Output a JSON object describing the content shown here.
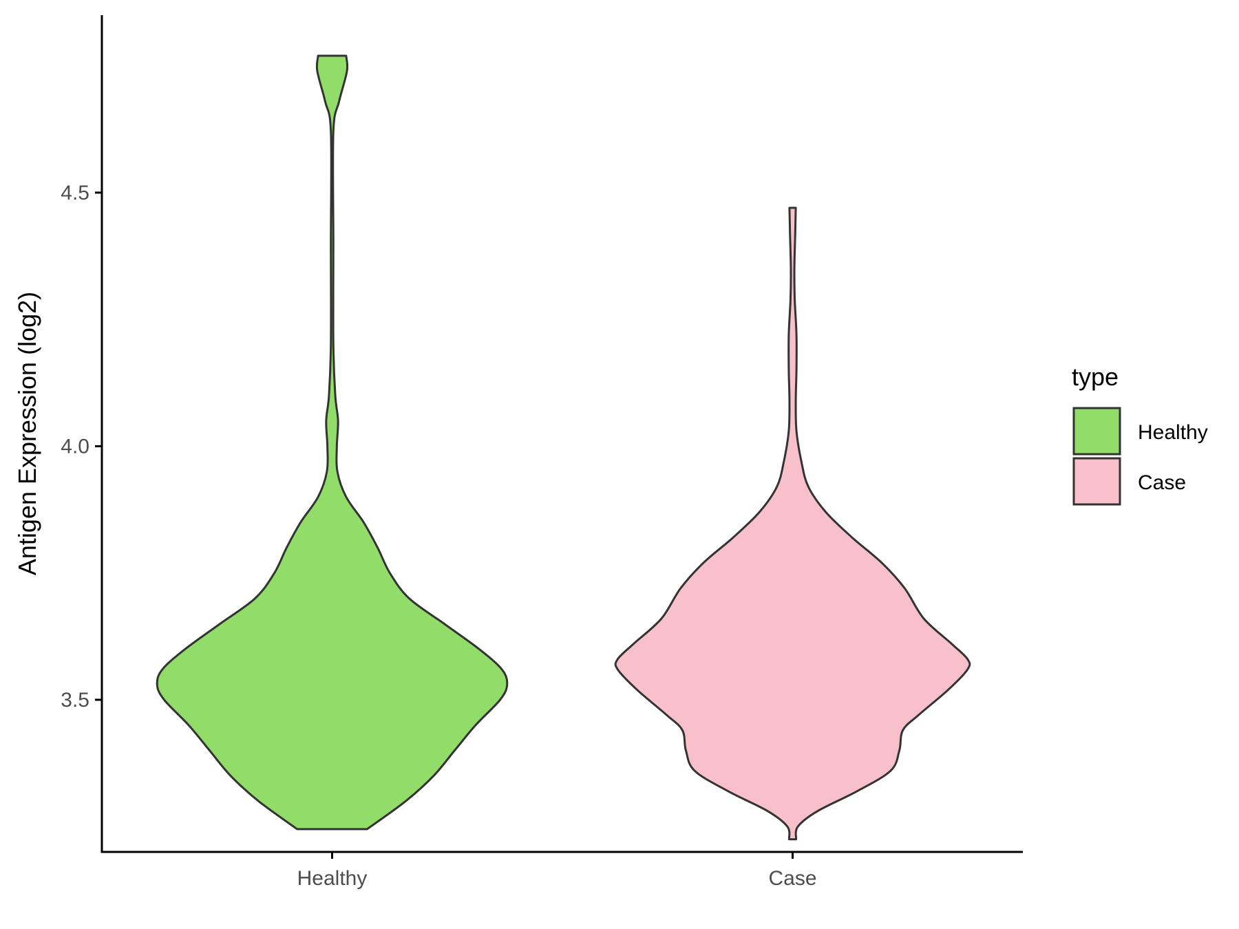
{
  "chart_data": {
    "type": "violin",
    "title": "",
    "xlabel": "",
    "ylabel": "Antigen Expression (log2)",
    "categories": [
      "Healthy",
      "Case"
    ],
    "ylim": [
      3.2,
      4.85
    ],
    "yticks": [
      3.5,
      4.0,
      4.5
    ],
    "ytick_labels": [
      "3.5",
      "4.0",
      "4.5"
    ],
    "legend": {
      "title": "type",
      "position": "right",
      "entries": [
        "Healthy",
        "Case"
      ]
    },
    "colors": {
      "Healthy": "#92dc6a",
      "Case": "#f8c0cb",
      "outline": "#333333",
      "axis": "#000000"
    },
    "series": [
      {
        "category": "Healthy",
        "min": 3.245,
        "max": 4.77,
        "density_profile": [
          {
            "y": 3.245,
            "w": 0.2
          },
          {
            "y": 3.3,
            "w": 0.42
          },
          {
            "y": 3.35,
            "w": 0.58
          },
          {
            "y": 3.4,
            "w": 0.7
          },
          {
            "y": 3.45,
            "w": 0.82
          },
          {
            "y": 3.5,
            "w": 0.96
          },
          {
            "y": 3.53,
            "w": 1.0
          },
          {
            "y": 3.56,
            "w": 0.97
          },
          {
            "y": 3.6,
            "w": 0.84
          },
          {
            "y": 3.65,
            "w": 0.64
          },
          {
            "y": 3.7,
            "w": 0.44
          },
          {
            "y": 3.75,
            "w": 0.33
          },
          {
            "y": 3.8,
            "w": 0.26
          },
          {
            "y": 3.85,
            "w": 0.18
          },
          {
            "y": 3.9,
            "w": 0.08
          },
          {
            "y": 3.95,
            "w": 0.03
          },
          {
            "y": 4.0,
            "w": 0.027
          },
          {
            "y": 4.05,
            "w": 0.034
          },
          {
            "y": 4.1,
            "w": 0.018
          },
          {
            "y": 4.2,
            "w": 0.007
          },
          {
            "y": 4.4,
            "w": 0.007
          },
          {
            "y": 4.62,
            "w": 0.007
          },
          {
            "y": 4.68,
            "w": 0.04
          },
          {
            "y": 4.74,
            "w": 0.085
          },
          {
            "y": 4.77,
            "w": 0.08
          }
        ]
      },
      {
        "category": "Case",
        "min": 3.225,
        "max": 4.47,
        "density_profile": [
          {
            "y": 3.225,
            "w": 0.02
          },
          {
            "y": 3.25,
            "w": 0.03
          },
          {
            "y": 3.28,
            "w": 0.14
          },
          {
            "y": 3.32,
            "w": 0.37
          },
          {
            "y": 3.36,
            "w": 0.56
          },
          {
            "y": 3.4,
            "w": 0.61
          },
          {
            "y": 3.44,
            "w": 0.63
          },
          {
            "y": 3.47,
            "w": 0.72
          },
          {
            "y": 3.52,
            "w": 0.89
          },
          {
            "y": 3.56,
            "w": 1.0
          },
          {
            "y": 3.58,
            "w": 1.0
          },
          {
            "y": 3.61,
            "w": 0.91
          },
          {
            "y": 3.66,
            "w": 0.75
          },
          {
            "y": 3.72,
            "w": 0.64
          },
          {
            "y": 3.77,
            "w": 0.51
          },
          {
            "y": 3.82,
            "w": 0.34
          },
          {
            "y": 3.87,
            "w": 0.19
          },
          {
            "y": 3.92,
            "w": 0.09
          },
          {
            "y": 3.97,
            "w": 0.05
          },
          {
            "y": 4.03,
            "w": 0.022
          },
          {
            "y": 4.09,
            "w": 0.018
          },
          {
            "y": 4.15,
            "w": 0.022
          },
          {
            "y": 4.22,
            "w": 0.022
          },
          {
            "y": 4.29,
            "w": 0.012
          },
          {
            "y": 4.35,
            "w": 0.01
          },
          {
            "y": 4.42,
            "w": 0.015
          },
          {
            "y": 4.47,
            "w": 0.018
          }
        ]
      }
    ]
  }
}
